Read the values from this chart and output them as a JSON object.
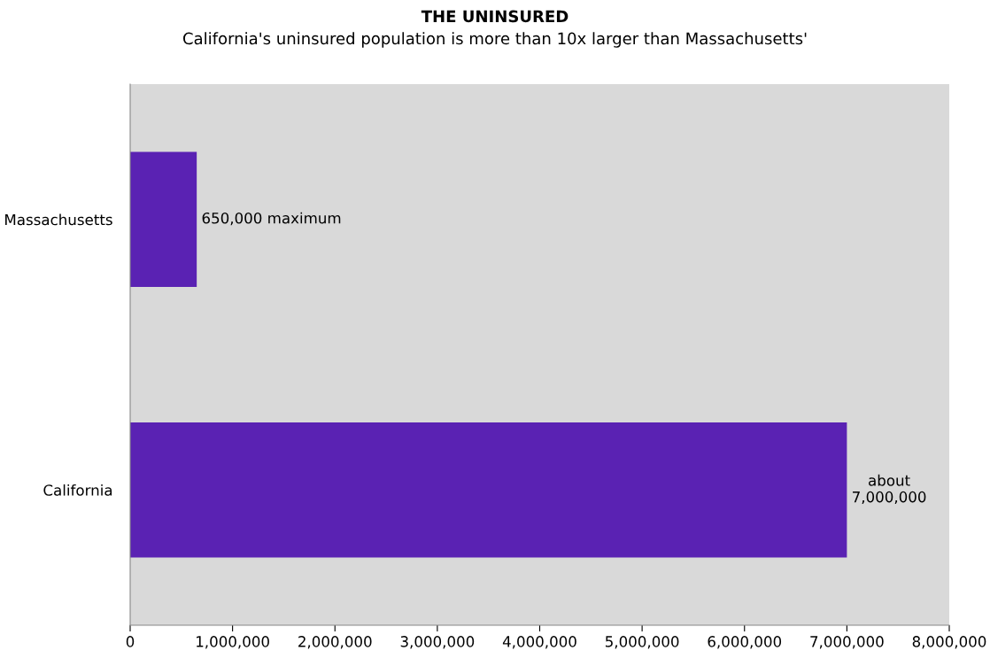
{
  "chart_data": {
    "type": "bar",
    "orientation": "horizontal",
    "title": "THE UNINSURED",
    "subtitle": "California's uninsured population is more than 10x larger than Massachusetts'",
    "categories": [
      "Massachusetts",
      "California"
    ],
    "values": [
      650000,
      7000000
    ],
    "color": "#5a22b3",
    "value_labels": [
      "650,000 maximum",
      "about\n7,000,000"
    ],
    "xlim": [
      0,
      8000000
    ],
    "xticks": [
      0,
      {
        "value": 1000000,
        "label": "1,000,000"
      },
      {
        "value": 2000000,
        "label": "2,000,000"
      },
      {
        "value": 3000000,
        "label": "3,000,000"
      },
      {
        "value": 4000000,
        "label": "4,000,000"
      },
      {
        "value": 5000000,
        "label": "5,000,000"
      },
      {
        "value": 6000000,
        "label": "6,000,000"
      },
      {
        "value": 7000000,
        "label": "7,000,000"
      },
      {
        "value": 8000000,
        "label": "8,000,000"
      }
    ],
    "grid": false,
    "legend": false
  }
}
